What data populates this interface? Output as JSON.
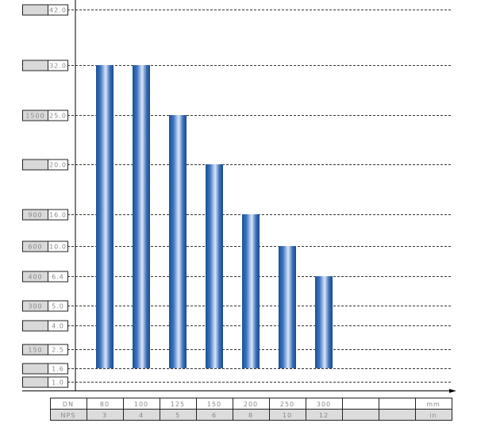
{
  "chart_data": {
    "type": "bar",
    "categories": [
      "80",
      "100",
      "125",
      "150",
      "200",
      "250",
      "300"
    ],
    "values": [
      32.0,
      32.0,
      25.0,
      20.0,
      16.0,
      10.0,
      6.4
    ],
    "baseline": 1.6,
    "y_ticks": [
      {
        "value": "42.0",
        "alt": ""
      },
      {
        "value": "32.0",
        "alt": ""
      },
      {
        "value": "25.0",
        "alt": "1500"
      },
      {
        "value": "20.0",
        "alt": ""
      },
      {
        "value": "16.0",
        "alt": "900"
      },
      {
        "value": "10.0",
        "alt": "600"
      },
      {
        "value": "6.4",
        "alt": "400"
      },
      {
        "value": "5.0",
        "alt": "300"
      },
      {
        "value": "4.0",
        "alt": ""
      },
      {
        "value": "2.5",
        "alt": "150"
      },
      {
        "value": "1.6",
        "alt": ""
      },
      {
        "value": "1.0",
        "alt": ""
      }
    ],
    "grid": true,
    "bar_color": "#2a5fa5",
    "table": {
      "rows": [
        {
          "label": "DN",
          "cells": [
            "80",
            "100",
            "125",
            "150",
            "200",
            "250",
            "300",
            "",
            ""
          ],
          "unit": "mm"
        },
        {
          "label": "NPS",
          "cells": [
            "3",
            "4",
            "5",
            "6",
            "8",
            "10",
            "12",
            "",
            ""
          ],
          "unit": "in"
        }
      ]
    }
  }
}
